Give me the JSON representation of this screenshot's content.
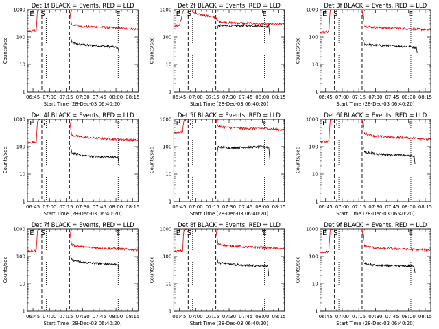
{
  "common": {
    "ylabel": "Counts/sec",
    "xlabel": "Start Time (28-Dec-03 06:40:20)",
    "xticks": [
      "06:45",
      "07:00",
      "07:15",
      "07:30",
      "07:45",
      "08:00",
      "08:15"
    ],
    "yticks": [
      "1",
      "10",
      "100",
      "1000"
    ],
    "colors": {
      "events": "#000000",
      "lld": "#e00000"
    }
  },
  "chart_data": [
    {
      "type": "line",
      "title": "Det 1f BLACK = Events, RED = LLD",
      "xlabel": "Start Time (28-Dec-03 06:40:20)",
      "ylabel": "Counts/sec",
      "xlim": [
        "06:40",
        "08:20"
      ],
      "ylim": [
        1,
        1000
      ],
      "yscale": "log",
      "series": [
        {
          "name": "Events",
          "color": "#000000",
          "x": [
            "07:19",
            "07:20",
            "07:25",
            "07:35",
            "07:45",
            "07:55",
            "08:02",
            "08:03"
          ],
          "y": [
            110,
            65,
            55,
            50,
            48,
            45,
            42,
            18
          ]
        },
        {
          "name": "LLD",
          "color": "#e00000",
          "x": [
            "06:40",
            "06:48",
            "06:49",
            "06:52",
            "07:18",
            "07:20",
            "07:30",
            "07:45",
            "08:00",
            "08:10",
            "08:20"
          ],
          "y": [
            160,
            170,
            900,
            1000,
            1000,
            280,
            240,
            230,
            210,
            200,
            190
          ]
        }
      ],
      "markers": [
        {
          "label": "E",
          "x": "06:44"
        },
        {
          "label": "S",
          "x": "06:54"
        },
        {
          "label": "E",
          "x": "08:02"
        }
      ]
    },
    {
      "type": "line",
      "title": "Det 2f BLACK = Events, RED = LLD",
      "xlabel": "Start Time (28-Dec-03 06:40:20)",
      "ylabel": "Counts/sec",
      "xlim": [
        "06:40",
        "08:20"
      ],
      "ylim": [
        1,
        1000
      ],
      "yscale": "log",
      "series": [
        {
          "name": "Events",
          "color": "#000000",
          "x": [
            "07:19",
            "07:20",
            "07:30",
            "07:45",
            "08:00",
            "08:06",
            "08:07"
          ],
          "y": [
            170,
            260,
            250,
            260,
            250,
            240,
            90
          ]
        },
        {
          "name": "LLD",
          "color": "#e00000",
          "x": [
            "06:40",
            "06:45",
            "06:49",
            "06:52",
            "06:56",
            "06:59",
            "07:18",
            "07:20",
            "07:30",
            "07:45",
            "08:00",
            "08:10",
            "08:20"
          ],
          "y": [
            250,
            260,
            1000,
            1000,
            1000,
            700,
            520,
            380,
            330,
            320,
            300,
            290,
            300
          ]
        }
      ],
      "markers": [
        {
          "label": "E",
          "x": "06:44"
        },
        {
          "label": "S",
          "x": "06:54"
        },
        {
          "label": "E",
          "x": "08:02"
        }
      ]
    },
    {
      "type": "line",
      "title": "Det 3f BLACK = Events, RED = LLD",
      "xlabel": "Start Time (28-Dec-03 06:40:20)",
      "ylabel": "Counts/sec",
      "xlim": [
        "06:40",
        "08:20"
      ],
      "ylim": [
        1,
        1000
      ],
      "yscale": "log",
      "series": [
        {
          "name": "Events",
          "color": "#000000",
          "x": [
            "07:19",
            "07:20",
            "07:30",
            "07:45",
            "08:00",
            "08:07",
            "08:08"
          ],
          "y": [
            80,
            55,
            50,
            48,
            45,
            42,
            22
          ]
        },
        {
          "name": "LLD",
          "color": "#e00000",
          "x": [
            "06:40",
            "06:48",
            "06:49",
            "06:52",
            "07:18",
            "07:20",
            "07:30",
            "07:45",
            "08:00",
            "08:10",
            "08:20"
          ],
          "y": [
            150,
            160,
            900,
            1000,
            1000,
            250,
            220,
            210,
            200,
            190,
            180
          ]
        }
      ],
      "markers": [
        {
          "label": "E",
          "x": "06:44"
        },
        {
          "label": "S",
          "x": "06:54"
        },
        {
          "label": "E",
          "x": "08:02"
        }
      ]
    },
    {
      "type": "line",
      "title": "Det 4f BLACK = Events, RED = LLD",
      "xlabel": "Start Time (28-Dec-03 06:40:20)",
      "ylabel": "Counts/sec",
      "xlim": [
        "06:40",
        "08:20"
      ],
      "ylim": [
        1,
        1000
      ],
      "yscale": "log",
      "series": [
        {
          "name": "Events",
          "color": "#000000",
          "x": [
            "07:19",
            "07:20",
            "07:30",
            "07:45",
            "08:00",
            "08:02",
            "08:03"
          ],
          "y": [
            110,
            60,
            48,
            42,
            42,
            40,
            20
          ]
        },
        {
          "name": "LLD",
          "color": "#e00000",
          "x": [
            "06:40",
            "06:48",
            "06:49",
            "06:52",
            "07:18",
            "07:20",
            "07:30",
            "07:45",
            "08:00",
            "08:10",
            "08:20"
          ],
          "y": [
            140,
            150,
            900,
            1000,
            1000,
            260,
            220,
            200,
            190,
            180,
            170
          ]
        }
      ],
      "markers": [
        {
          "label": "E",
          "x": "06:44"
        },
        {
          "label": "S",
          "x": "06:54"
        },
        {
          "label": "E",
          "x": "08:02"
        }
      ]
    },
    {
      "type": "line",
      "title": "Det 5f BLACK = Events, RED = LLD",
      "xlabel": "Start Time (28-Dec-03 06:40:20)",
      "ylabel": "Counts/sec",
      "xlim": [
        "06:40",
        "08:20"
      ],
      "ylim": [
        1,
        1000
      ],
      "yscale": "log",
      "series": [
        {
          "name": "Events",
          "color": "#000000",
          "x": [
            "07:19",
            "07:20",
            "07:30",
            "07:45",
            "08:00",
            "08:06",
            "08:07"
          ],
          "y": [
            50,
            100,
            90,
            95,
            100,
            95,
            25
          ]
        },
        {
          "name": "LLD",
          "color": "#e00000",
          "x": [
            "06:40",
            "06:48",
            "06:49",
            "06:52",
            "07:18",
            "07:20",
            "07:30",
            "07:45",
            "08:00",
            "08:10",
            "08:20"
          ],
          "y": [
            320,
            350,
            900,
            1000,
            1000,
            550,
            500,
            460,
            470,
            440,
            400
          ]
        }
      ],
      "markers": [
        {
          "label": "E",
          "x": "06:44"
        },
        {
          "label": "S",
          "x": "06:54"
        },
        {
          "label": "E",
          "x": "08:02"
        }
      ]
    },
    {
      "type": "line",
      "title": "Det 6f BLACK = Events, RED = LLD",
      "xlabel": "Start Time (28-Dec-03 06:40:20)",
      "ylabel": "Counts/sec",
      "xlim": [
        "06:40",
        "08:20"
      ],
      "ylim": [
        1,
        1000
      ],
      "yscale": "log",
      "series": [
        {
          "name": "Events",
          "color": "#000000",
          "x": [
            "07:19",
            "07:20",
            "07:30",
            "07:45",
            "08:00",
            "08:05",
            "08:06"
          ],
          "y": [
            100,
            65,
            55,
            50,
            48,
            45,
            20
          ]
        },
        {
          "name": "LLD",
          "color": "#e00000",
          "x": [
            "06:40",
            "06:48",
            "06:49",
            "06:52",
            "07:18",
            "07:20",
            "07:30",
            "07:45",
            "08:00",
            "08:10",
            "08:20"
          ],
          "y": [
            150,
            160,
            900,
            1000,
            1000,
            300,
            240,
            220,
            210,
            200,
            180
          ]
        }
      ],
      "markers": [
        {
          "label": "E",
          "x": "06:44"
        },
        {
          "label": "S",
          "x": "06:54"
        },
        {
          "label": "E",
          "x": "08:02"
        }
      ]
    },
    {
      "type": "line",
      "title": "Det 7f BLACK = Events, RED = LLD",
      "xlabel": "Start Time (28-Dec-03 06:40:20)",
      "ylabel": "Counts/sec",
      "xlim": [
        "06:40",
        "08:20"
      ],
      "ylim": [
        1,
        1000
      ],
      "yscale": "log",
      "series": [
        {
          "name": "Events",
          "color": "#000000",
          "x": [
            "07:19",
            "07:20",
            "07:30",
            "07:45",
            "08:00",
            "08:02",
            "08:03"
          ],
          "y": [
            110,
            75,
            60,
            55,
            52,
            50,
            20
          ]
        },
        {
          "name": "LLD",
          "color": "#e00000",
          "x": [
            "06:40",
            "06:48",
            "06:49",
            "06:52",
            "07:18",
            "07:20",
            "07:30",
            "07:45",
            "08:00",
            "08:10",
            "08:20"
          ],
          "y": [
            150,
            160,
            900,
            1000,
            1000,
            260,
            220,
            200,
            190,
            180,
            170
          ]
        }
      ],
      "markers": [
        {
          "label": "E",
          "x": "06:44"
        },
        {
          "label": "S",
          "x": "06:54"
        },
        {
          "label": "E",
          "x": "08:02"
        }
      ]
    },
    {
      "type": "line",
      "title": "Det 8f BLACK = Events, RED = LLD",
      "xlabel": "Start Time (28-Dec-03 06:40:20)",
      "ylabel": "Counts/sec",
      "xlim": [
        "06:40",
        "08:20"
      ],
      "ylim": [
        1,
        1000
      ],
      "yscale": "log",
      "series": [
        {
          "name": "Events",
          "color": "#000000",
          "x": [
            "07:19",
            "07:20",
            "07:30",
            "07:45",
            "08:00",
            "08:05",
            "08:06"
          ],
          "y": [
            90,
            60,
            52,
            48,
            45,
            45,
            15
          ]
        },
        {
          "name": "LLD",
          "color": "#e00000",
          "x": [
            "06:40",
            "06:48",
            "06:49",
            "06:52",
            "07:18",
            "07:20",
            "07:30",
            "07:45",
            "08:00",
            "08:10",
            "08:20"
          ],
          "y": [
            150,
            160,
            900,
            1000,
            1000,
            280,
            240,
            220,
            210,
            200,
            180
          ]
        }
      ],
      "markers": [
        {
          "label": "E",
          "x": "06:44"
        },
        {
          "label": "S",
          "x": "06:54"
        },
        {
          "label": "E",
          "x": "08:02"
        }
      ]
    },
    {
      "type": "line",
      "title": "Det 9f BLACK = Events, RED = LLD",
      "xlabel": "Start Time (28-Dec-03 06:40:20)",
      "ylabel": "Counts/sec",
      "xlim": [
        "06:40",
        "08:20"
      ],
      "ylim": [
        1,
        1000
      ],
      "yscale": "log",
      "series": [
        {
          "name": "Events",
          "color": "#000000",
          "x": [
            "07:19",
            "07:20",
            "07:30",
            "07:45",
            "08:00",
            "08:05",
            "08:06"
          ],
          "y": [
            70,
            55,
            48,
            45,
            45,
            42,
            22
          ]
        },
        {
          "name": "LLD",
          "color": "#e00000",
          "x": [
            "06:40",
            "06:48",
            "06:49",
            "06:52",
            "07:18",
            "07:20",
            "07:30",
            "07:45",
            "08:00",
            "08:10",
            "08:20"
          ],
          "y": [
            140,
            150,
            900,
            1000,
            1000,
            240,
            200,
            190,
            180,
            175,
            170
          ]
        }
      ],
      "markers": [
        {
          "label": "E",
          "x": "06:44"
        },
        {
          "label": "S",
          "x": "06:54"
        },
        {
          "label": "E",
          "x": "08:02"
        }
      ]
    }
  ]
}
